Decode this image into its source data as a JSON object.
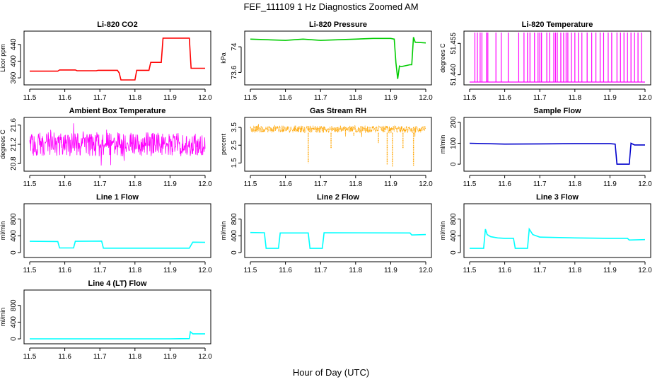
{
  "figure": {
    "title": "FEF_111109  1 Hz Diagnostics Zoomed AM",
    "xlabel": "Hour of Day (UTC)"
  },
  "chart_data": [
    {
      "type": "line",
      "title": "Li-820 CO2",
      "ylabel": "Licor ppm",
      "color": "#ff0000",
      "xlim": [
        11.5,
        12.0
      ],
      "ylim": [
        350,
        465
      ],
      "yticks": [
        360,
        400,
        440
      ],
      "xticks": [
        11.5,
        11.6,
        11.7,
        11.8,
        11.9,
        12.0
      ],
      "series": [
        {
          "x": [
            11.5,
            11.58,
            11.585,
            11.63,
            11.635,
            11.69,
            11.695,
            11.745,
            11.75,
            11.755,
            11.76,
            11.8,
            11.805,
            11.84,
            11.845,
            11.875,
            11.88,
            11.955,
            11.96,
            12.0
          ],
          "y": [
            376,
            376,
            379,
            379,
            377,
            377,
            378,
            378,
            378,
            372,
            355,
            355,
            378,
            378,
            397,
            397,
            455,
            455,
            383,
            383
          ]
        }
      ]
    },
    {
      "type": "line",
      "title": "Li-820 Pressure",
      "ylabel": "kPa",
      "color": "#00cc00",
      "xlim": [
        11.5,
        12.0
      ],
      "ylim": [
        73.45,
        74.2
      ],
      "yticks": [
        73.6,
        74.0
      ],
      "xticks": [
        11.5,
        11.6,
        11.7,
        11.8,
        11.9,
        12.0
      ],
      "series": [
        {
          "x": [
            11.5,
            11.55,
            11.6,
            11.65,
            11.7,
            11.75,
            11.8,
            11.85,
            11.9,
            11.91,
            11.915,
            11.92,
            11.925,
            11.93,
            11.955,
            11.96,
            11.965,
            11.97,
            11.975,
            12.0
          ],
          "y": [
            74.12,
            74.11,
            74.1,
            74.12,
            74.1,
            74.11,
            74.12,
            74.13,
            74.13,
            74.12,
            73.75,
            73.5,
            73.7,
            73.69,
            73.72,
            73.72,
            74.15,
            74.07,
            74.07,
            74.06
          ]
        }
      ]
    },
    {
      "type": "line",
      "title": "Li-820 Temperature",
      "ylabel": "degrees C",
      "color": "#ff00ff",
      "xlim": [
        11.5,
        12.0
      ],
      "ylim": [
        51.4365,
        51.4595
      ],
      "yticks": [
        51.44,
        51.455
      ],
      "extra_tick_labels": [
        "51.440",
        "51.455"
      ],
      "xticks": [
        11.5,
        11.6,
        11.7,
        11.8,
        11.9,
        12.0
      ],
      "levels": [
        51.4365,
        51.4586
      ],
      "base_level": 51.4365,
      "spike_x": [
        11.515,
        11.522,
        11.53,
        11.535,
        11.548,
        11.552,
        11.575,
        11.59,
        11.61,
        11.64,
        11.655,
        11.665,
        11.672,
        11.685,
        11.695,
        11.7,
        11.705,
        11.72,
        11.728,
        11.74,
        11.745,
        11.75,
        11.76,
        11.768,
        11.775,
        11.78,
        11.79,
        11.8,
        11.81,
        11.82,
        11.835,
        11.848,
        11.86,
        11.872,
        11.882,
        11.895,
        11.905,
        11.92,
        11.93,
        11.94,
        11.95,
        11.96,
        11.97,
        11.98,
        11.99
      ]
    },
    {
      "type": "line",
      "title": "Ambient Box Temperature",
      "ylabel": "degrees C",
      "color": "#ff00ff",
      "xlim": [
        11.5,
        12.0
      ],
      "ylim": [
        20.7,
        21.7
      ],
      "yticks": [
        20.8,
        21.2,
        21.6
      ],
      "xticks": [
        11.5,
        11.6,
        11.7,
        11.8,
        11.9,
        12.0
      ],
      "noise": {
        "center": 21.2,
        "range": [
          20.95,
          21.45
        ],
        "min": 20.75,
        "max": 21.65
      }
    },
    {
      "type": "line",
      "title": "Gas Stream RH",
      "ylabel": "percent",
      "color": "#ffa500",
      "xlim": [
        11.5,
        12.0
      ],
      "ylim": [
        1.2,
        3.9
      ],
      "yticks": [
        1.5,
        2.5,
        3.5
      ],
      "xticks": [
        11.5,
        11.6,
        11.7,
        11.8,
        11.9,
        12.0
      ],
      "noise": {
        "center": 3.4,
        "range": [
          3.2,
          3.6
        ],
        "min": 2.9,
        "max": 3.75
      },
      "dips": [
        {
          "x": 11.665,
          "y": 1.5
        },
        {
          "x": 11.73,
          "y": 2.3
        },
        {
          "x": 11.865,
          "y": 2.6
        },
        {
          "x": 11.89,
          "y": 1.4
        },
        {
          "x": 11.905,
          "y": 1.3
        },
        {
          "x": 11.935,
          "y": 2.3
        },
        {
          "x": 11.965,
          "y": 1.35
        },
        {
          "x": 11.795,
          "y": 3.0
        }
      ]
    },
    {
      "type": "line",
      "title": "Sample Flow",
      "ylabel": "ml/min",
      "color": "#0000cc",
      "xlim": [
        11.5,
        12.0
      ],
      "ylim": [
        -20,
        210
      ],
      "yticks": [
        0,
        100,
        200
      ],
      "xticks": [
        11.5,
        11.6,
        11.7,
        11.8,
        11.9,
        12.0
      ],
      "series": [
        {
          "x": [
            11.5,
            11.6,
            11.7,
            11.8,
            11.9,
            11.915,
            11.92,
            11.955,
            11.96,
            11.97,
            12.0
          ],
          "y": [
            100,
            96,
            97,
            98,
            98,
            96,
            0,
            0,
            100,
            92,
            92
          ]
        }
      ]
    },
    {
      "type": "line",
      "title": "Line 1 Flow",
      "ylabel": "ml/min",
      "color": "#00ffff",
      "xlim": [
        11.5,
        12.0
      ],
      "ylim": [
        -50,
        1100
      ],
      "yticks": [
        0,
        400,
        800
      ],
      "xticks": [
        11.5,
        11.6,
        11.7,
        11.8,
        11.9,
        12.0
      ],
      "series": [
        {
          "x": [
            11.5,
            11.58,
            11.585,
            11.625,
            11.63,
            11.705,
            11.71,
            11.955,
            11.96,
            11.965,
            12.0
          ],
          "y": [
            270,
            265,
            110,
            110,
            270,
            275,
            105,
            105,
            180,
            250,
            245
          ]
        }
      ]
    },
    {
      "type": "line",
      "title": "Line 2 Flow",
      "ylabel": "ml/min",
      "color": "#00ffff",
      "xlim": [
        11.5,
        12.0
      ],
      "ylim": [
        -50,
        1100
      ],
      "yticks": [
        0,
        400,
        800
      ],
      "xticks": [
        11.5,
        11.6,
        11.7,
        11.8,
        11.9,
        12.0
      ],
      "series": [
        {
          "x": [
            11.5,
            11.54,
            11.545,
            11.58,
            11.585,
            11.665,
            11.67,
            11.705,
            11.71,
            11.955,
            11.96,
            12.0
          ],
          "y": [
            480,
            475,
            100,
            100,
            470,
            470,
            100,
            100,
            475,
            470,
            420,
            430
          ]
        }
      ]
    },
    {
      "type": "line",
      "title": "Line 3 Flow",
      "ylabel": "ml/min",
      "color": "#00ffff",
      "xlim": [
        11.5,
        12.0
      ],
      "ylim": [
        -50,
        1100
      ],
      "yticks": [
        0,
        400,
        800
      ],
      "xticks": [
        11.5,
        11.6,
        11.7,
        11.8,
        11.9,
        12.0
      ],
      "series": [
        {
          "x": [
            11.5,
            11.54,
            11.545,
            11.55,
            11.56,
            11.58,
            11.6,
            11.625,
            11.63,
            11.665,
            11.67,
            11.68,
            11.7,
            11.8,
            11.9,
            11.95,
            11.955,
            12.0
          ],
          "y": [
            100,
            100,
            560,
            430,
            380,
            350,
            340,
            340,
            100,
            100,
            560,
            430,
            370,
            350,
            340,
            340,
            300,
            310
          ]
        }
      ]
    },
    {
      "type": "line",
      "title": "Line 4 (LT) Flow",
      "ylabel": "ml/min",
      "color": "#00ffff",
      "xlim": [
        11.5,
        12.0
      ],
      "ylim": [
        -50,
        1100
      ],
      "yticks": [
        0,
        400,
        800
      ],
      "xticks": [
        11.5,
        11.6,
        11.7,
        11.8,
        11.9,
        12.0
      ],
      "series": [
        {
          "x": [
            11.5,
            11.6,
            11.7,
            11.8,
            11.9,
            11.955,
            11.958,
            11.965,
            12.0
          ],
          "y": [
            0,
            0,
            0,
            0,
            0,
            5,
            170,
            120,
            120
          ]
        }
      ]
    }
  ]
}
